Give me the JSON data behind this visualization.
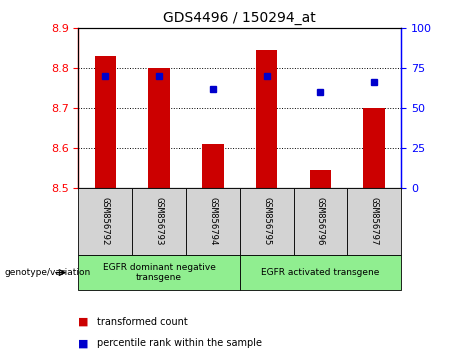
{
  "title": "GDS4496 / 150294_at",
  "samples": [
    "GSM856792",
    "GSM856793",
    "GSM856794",
    "GSM856795",
    "GSM856796",
    "GSM856797"
  ],
  "bar_values": [
    8.83,
    8.8,
    8.61,
    8.845,
    8.545,
    8.7
  ],
  "bar_bottom": 8.5,
  "percentile_values": [
    70,
    70,
    62,
    70,
    60,
    66
  ],
  "ylim_left": [
    8.5,
    8.9
  ],
  "ylim_right": [
    0,
    100
  ],
  "yticks_left": [
    8.5,
    8.6,
    8.7,
    8.8,
    8.9
  ],
  "yticks_right": [
    0,
    25,
    50,
    75,
    100
  ],
  "bar_color": "#cc0000",
  "dot_color": "#0000cc",
  "group1_label": "EGFR dominant negative\ntransgene",
  "group2_label": "EGFR activated transgene",
  "group1_indices": [
    0,
    1,
    2
  ],
  "group2_indices": [
    3,
    4,
    5
  ],
  "group_bg_color": "#90ee90",
  "sample_bg_color": "#d3d3d3",
  "xlabel_left": "genotype/variation",
  "legend_items": [
    "transformed count",
    "percentile rank within the sample"
  ],
  "legend_colors": [
    "#cc0000",
    "#0000cc"
  ],
  "bar_width": 0.4
}
